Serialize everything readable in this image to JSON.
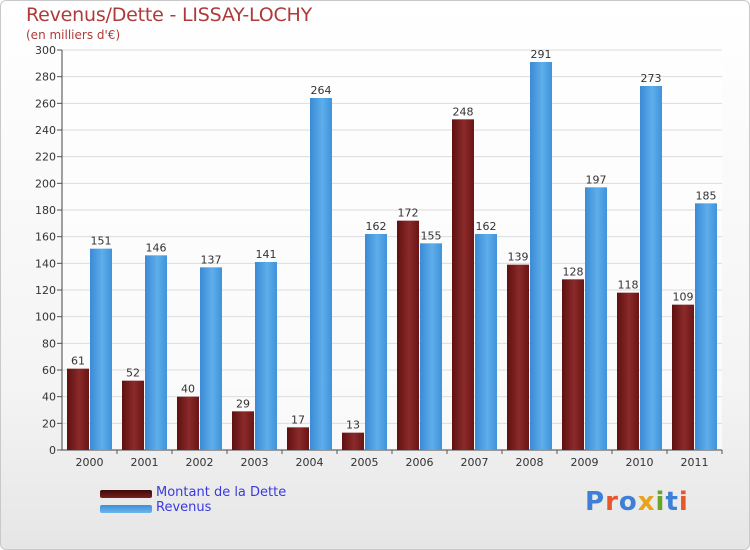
{
  "title": "Revenus/Dette - LISSAY-LOCHY",
  "subtitle": "(en milliers d'€)",
  "logo": "Proxiti",
  "logo_colors": [
    "#3f7fd6",
    "#e8562b",
    "#3f7fd6",
    "#e9a21c",
    "#6aa52a",
    "#3f7fd6",
    "#e8562b"
  ],
  "colors": {
    "dette": "#7a1f1f",
    "revenus": "#4f9fe0",
    "axis_text": "#333333",
    "grid": "#dcdcdc",
    "legend_text": "#3a3ae0",
    "title": "#b03a3a"
  },
  "legend": [
    {
      "label": "Montant de la Dette",
      "color": "#6a1515"
    },
    {
      "label": "Revenus",
      "color": "#4f9fe0"
    }
  ],
  "chart_data": {
    "type": "bar",
    "title": "Revenus/Dette - LISSAY-LOCHY",
    "subtitle": "(en milliers d'€)",
    "categories": [
      "2000",
      "2001",
      "2002",
      "2003",
      "2004",
      "2005",
      "2006",
      "2007",
      "2008",
      "2009",
      "2010",
      "2011"
    ],
    "series": [
      {
        "name": "Montant de la Dette",
        "values": [
          61,
          52,
          40,
          29,
          17,
          13,
          172,
          248,
          139,
          128,
          118,
          109
        ]
      },
      {
        "name": "Revenus",
        "values": [
          151,
          146,
          137,
          141,
          264,
          162,
          155,
          162,
          291,
          197,
          273,
          185
        ]
      }
    ],
    "yticks": [
      0,
      20,
      40,
      60,
      80,
      100,
      120,
      140,
      160,
      180,
      200,
      220,
      240,
      260,
      280,
      300
    ],
    "ylim": [
      0,
      300
    ],
    "grid": true,
    "legend_position": "bottom-left"
  }
}
